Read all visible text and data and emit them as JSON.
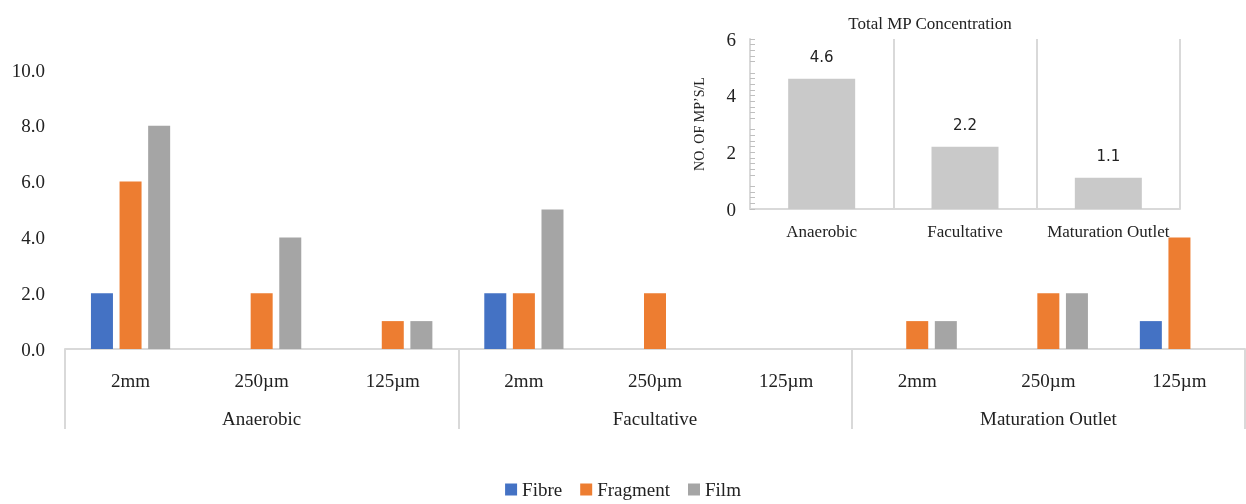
{
  "chart_data": [
    {
      "type": "bar",
      "categories": [
        "2mm",
        "250µm",
        "125µm",
        "2mm",
        "250µm",
        "125µm",
        "2mm",
        "250µm",
        "125µm"
      ],
      "series": [
        {
          "name": "Fibre",
          "color": "#4472c4",
          "values": [
            2,
            0,
            0,
            2,
            0,
            0,
            0,
            0,
            1
          ]
        },
        {
          "name": "Fragment",
          "color": "#ed7d31",
          "values": [
            6,
            2,
            1,
            2,
            2,
            0,
            1,
            2,
            4
          ]
        },
        {
          "name": "Film",
          "color": "#a5a5a5",
          "values": [
            8,
            4,
            1,
            5,
            0,
            0,
            1,
            2,
            0
          ]
        }
      ],
      "ylim": [
        0,
        10
      ],
      "yticks": [
        {
          "value": 0,
          "label": "0.0"
        },
        {
          "value": 2,
          "label": "2.0"
        },
        {
          "value": 4,
          "label": "4.0"
        },
        {
          "value": 6,
          "label": "6.0"
        },
        {
          "value": 8,
          "label": "8.0"
        },
        {
          "value": 10,
          "label": "10.0"
        }
      ],
      "annotations": [
        "Anaerobic",
        "Facultative",
        "Maturation Outlet"
      ],
      "grid": false,
      "legend": "bottom"
    },
    {
      "type": "bar",
      "title": "Total MP Concentration",
      "ylabel": "NO. OF MP’S/L",
      "categories": [
        "Anaerobic",
        "Facultative",
        "Maturation Outlet"
      ],
      "values": [
        4.6,
        2.2,
        1.1
      ],
      "color": "#c9c9c9",
      "ylim": [
        0,
        6
      ],
      "yticks": [
        0,
        2,
        4,
        6
      ],
      "data_labels": true,
      "grid": "x",
      "legend": false
    }
  ]
}
